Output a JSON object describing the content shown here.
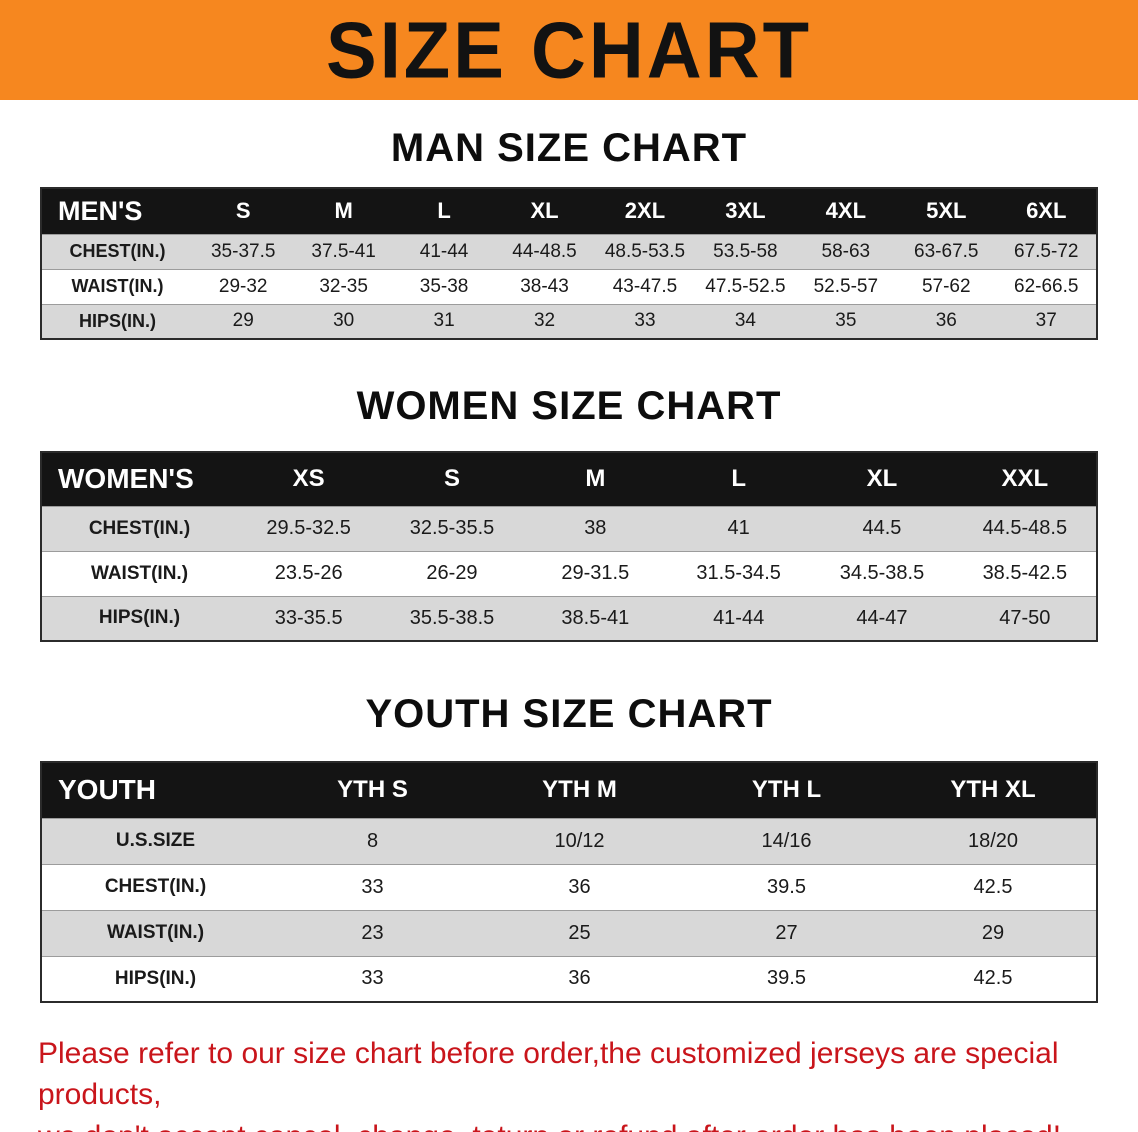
{
  "banner": {
    "title": "SIZE CHART",
    "background_color": "#f6871f",
    "text_color": "#121212"
  },
  "colors": {
    "table_header_bg": "#141414",
    "table_header_text": "#ffffff",
    "row_shade": "#d8d8d8",
    "disclaimer_red": "#c9151b"
  },
  "sections": [
    {
      "heading": "MAN SIZE CHART",
      "table": {
        "header": [
          "MEN'S",
          "S",
          "M",
          "L",
          "XL",
          "2XL",
          "3XL",
          "4XL",
          "5XL",
          "6XL"
        ],
        "rows": [
          [
            "CHEST(IN.)",
            "35-37.5",
            "37.5-41",
            "41-44",
            "44-48.5",
            "48.5-53.5",
            "53.5-58",
            "58-63",
            "63-67.5",
            "67.5-72"
          ],
          [
            "WAIST(IN.)",
            "29-32",
            "32-35",
            "35-38",
            "38-43",
            "43-47.5",
            "47.5-52.5",
            "52.5-57",
            "57-62",
            "62-66.5"
          ],
          [
            "HIPS(IN.)",
            "29",
            "30",
            "31",
            "32",
            "33",
            "34",
            "35",
            "36",
            "37"
          ]
        ]
      }
    },
    {
      "heading": "WOMEN SIZE CHART",
      "table": {
        "header": [
          "WOMEN'S",
          "XS",
          "S",
          "M",
          "L",
          "XL",
          "XXL"
        ],
        "rows": [
          [
            "CHEST(IN.)",
            "29.5-32.5",
            "32.5-35.5",
            "38",
            "41",
            "44.5",
            "44.5-48.5"
          ],
          [
            "WAIST(IN.)",
            "23.5-26",
            "26-29",
            "29-31.5",
            "31.5-34.5",
            "34.5-38.5",
            "38.5-42.5"
          ],
          [
            "HIPS(IN.)",
            "33-35.5",
            "35.5-38.5",
            "38.5-41",
            "41-44",
            "44-47",
            "47-50"
          ]
        ]
      }
    },
    {
      "heading": "YOUTH SIZE CHART",
      "table": {
        "header": [
          "YOUTH",
          "YTH S",
          "YTH M",
          "YTH L",
          "YTH XL"
        ],
        "rows": [
          [
            "U.S.SIZE",
            "8",
            "10/12",
            "14/16",
            "18/20"
          ],
          [
            "CHEST(IN.)",
            "33",
            "36",
            "39.5",
            "42.5"
          ],
          [
            "WAIST(IN.)",
            "23",
            "25",
            "27",
            "29"
          ],
          [
            "HIPS(IN.)",
            "33",
            "36",
            "39.5",
            "42.5"
          ]
        ]
      }
    }
  ],
  "disclaimer": {
    "line1": "Please refer to our size chart before order,the customized jerseys are special products,",
    "line2": "we don't accept cancel, change, teturn or refund after order has been placed!"
  }
}
